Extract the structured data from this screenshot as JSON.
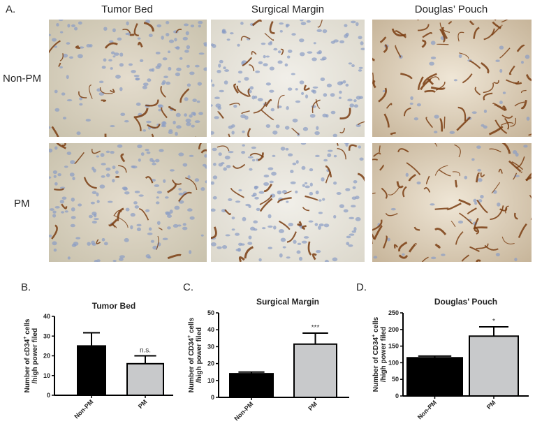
{
  "panel_a": {
    "label": "A.",
    "columns": [
      "Tumor Bed",
      "Surgical Margin",
      "Douglas’ Pouch"
    ],
    "rows": [
      "Non-PM",
      "PM"
    ]
  },
  "colors": {
    "non_pm_bar": "#000000",
    "pm_bar": "#c8c9cb",
    "stain_brown": "#7a3d12",
    "nuclei_blue": "#8a9cc4"
  },
  "chart_data": [
    {
      "panel": "B.",
      "type": "bar",
      "title": "Tumor Bed",
      "ylabel_line1": "Number of cD34",
      "ylabel_sup": "+",
      "ylabel_line1_end": " cells",
      "ylabel_line2": "/high power filed",
      "categories": [
        "Non-PM",
        "PM"
      ],
      "values": [
        25,
        16
      ],
      "error_upper": [
        31.7,
        20
      ],
      "significance": [
        "",
        "n.s."
      ],
      "ylim": [
        0,
        40
      ],
      "yticks": [
        "0",
        "10",
        "20",
        "30",
        "40"
      ]
    },
    {
      "panel": "C.",
      "type": "bar",
      "title": "Surgical Margin",
      "ylabel_line1": "Number of CD34",
      "ylabel_sup": "+",
      "ylabel_line1_end": " cells",
      "ylabel_line2": "/high power filed",
      "categories": [
        "Non-PM",
        "PM"
      ],
      "values": [
        14,
        31.5
      ],
      "error_upper": [
        15,
        38
      ],
      "significance": [
        "",
        "***"
      ],
      "ylim": [
        0,
        50
      ],
      "yticks": [
        "0",
        "10",
        "20",
        "30",
        "40",
        "50"
      ]
    },
    {
      "panel": "D.",
      "type": "bar",
      "title": "Douglas' Pouch",
      "ylabel_line1": "Number of CD34",
      "ylabel_sup": "+",
      "ylabel_line1_end": " cells",
      "ylabel_line2": "/high power filed",
      "categories": [
        "Non-PM",
        "PM"
      ],
      "values": [
        115,
        180
      ],
      "error_upper": [
        120,
        208
      ],
      "significance": [
        "",
        "*"
      ],
      "ylim": [
        0,
        250
      ],
      "yticks": [
        "0",
        "50",
        "100",
        "150",
        "200",
        "250"
      ]
    }
  ]
}
